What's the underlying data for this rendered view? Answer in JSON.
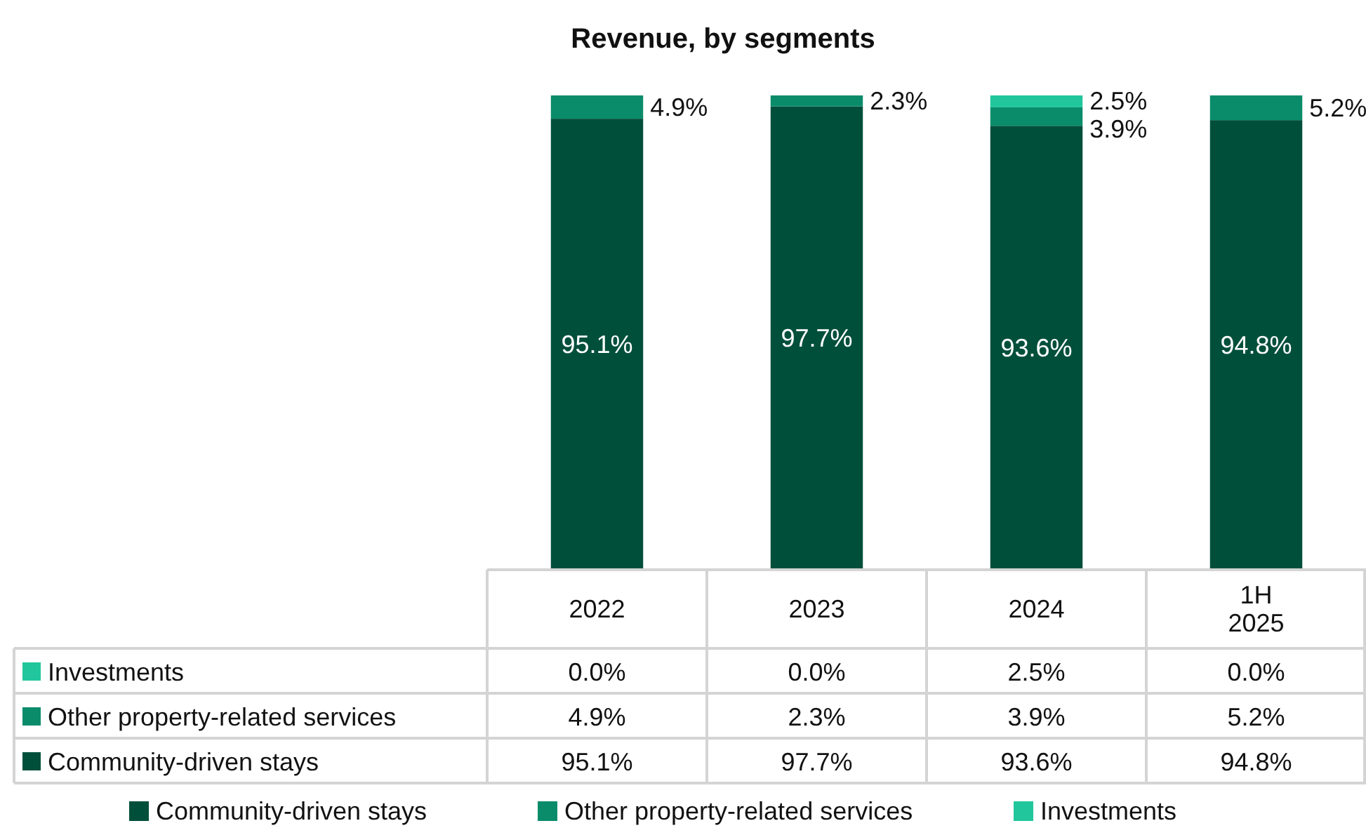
{
  "chart_data": {
    "type": "bar",
    "title": "Revenue, by segments",
    "stacked": true,
    "legend": "bottom",
    "categories": [
      "2022",
      "2023",
      "2024",
      "1H 2025"
    ],
    "series": [
      {
        "name": "Community-driven stays",
        "color": "#004f3b",
        "values": [
          95.1,
          97.7,
          93.6,
          94.8
        ],
        "value_labels": [
          "95.1%",
          "97.7%",
          "93.6%",
          "94.8%"
        ]
      },
      {
        "name": "Other property-related services",
        "color": "#0a8c6a",
        "values": [
          4.9,
          2.3,
          3.9,
          5.2
        ],
        "value_labels": [
          "4.9%",
          "2.3%",
          "3.9%",
          "5.2%"
        ]
      },
      {
        "name": "Investments",
        "color": "#21c69c",
        "values": [
          0,
          0,
          2.5,
          0
        ],
        "value_labels": [
          "0.0%",
          "0.0%",
          "2.5%",
          "0.0%"
        ]
      }
    ]
  }
}
